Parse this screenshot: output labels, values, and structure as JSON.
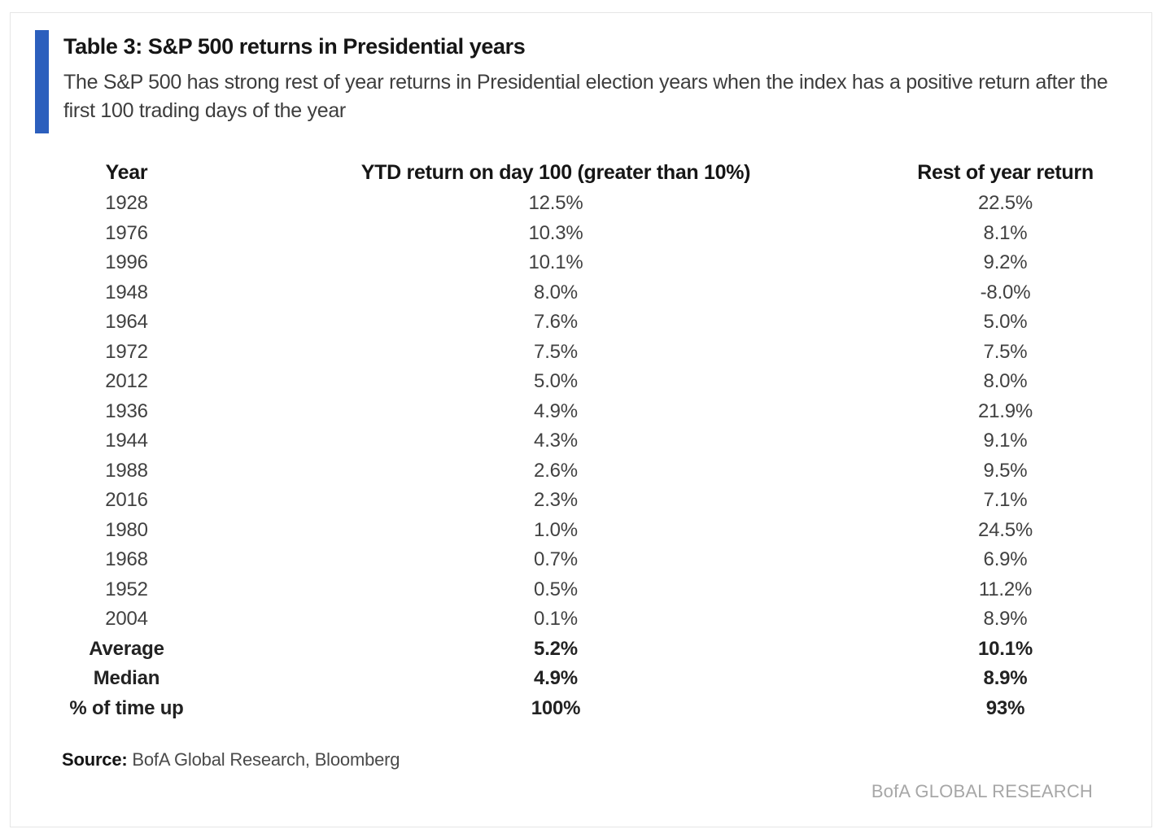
{
  "chart_data": {
    "type": "table",
    "title": "Table 3: S&P 500 returns in Presidential years",
    "subtitle": "The S&P 500 has strong rest of year returns in Presidential election years when the index has a positive return after the first 100 trading days of the year",
    "columns": [
      "Year",
      "YTD return on day 100 (greater than 10%)",
      "Rest of year return"
    ],
    "rows": [
      [
        "1928",
        "12.5%",
        "22.5%"
      ],
      [
        "1976",
        "10.3%",
        "8.1%"
      ],
      [
        "1996",
        "10.1%",
        "9.2%"
      ],
      [
        "1948",
        "8.0%",
        "-8.0%"
      ],
      [
        "1964",
        "7.6%",
        "5.0%"
      ],
      [
        "1972",
        "7.5%",
        "7.5%"
      ],
      [
        "2012",
        "5.0%",
        "8.0%"
      ],
      [
        "1936",
        "4.9%",
        "21.9%"
      ],
      [
        "1944",
        "4.3%",
        "9.1%"
      ],
      [
        "1988",
        "2.6%",
        "9.5%"
      ],
      [
        "2016",
        "2.3%",
        "7.1%"
      ],
      [
        "1980",
        "1.0%",
        "24.5%"
      ],
      [
        "1968",
        "0.7%",
        "6.9%"
      ],
      [
        "1952",
        "0.5%",
        "11.2%"
      ],
      [
        "2004",
        "0.1%",
        "8.9%"
      ]
    ],
    "summary_rows": [
      [
        "Average",
        "5.2%",
        "10.1%"
      ],
      [
        "Median",
        "4.9%",
        "8.9%"
      ],
      [
        "% of time up",
        "100%",
        "93%"
      ]
    ]
  },
  "footer": {
    "source_label": "Source:",
    "source_text": " BofA Global Research, Bloomberg",
    "brand": "BofA GLOBAL RESEARCH"
  },
  "colors": {
    "accent": "#2c5fbd"
  }
}
